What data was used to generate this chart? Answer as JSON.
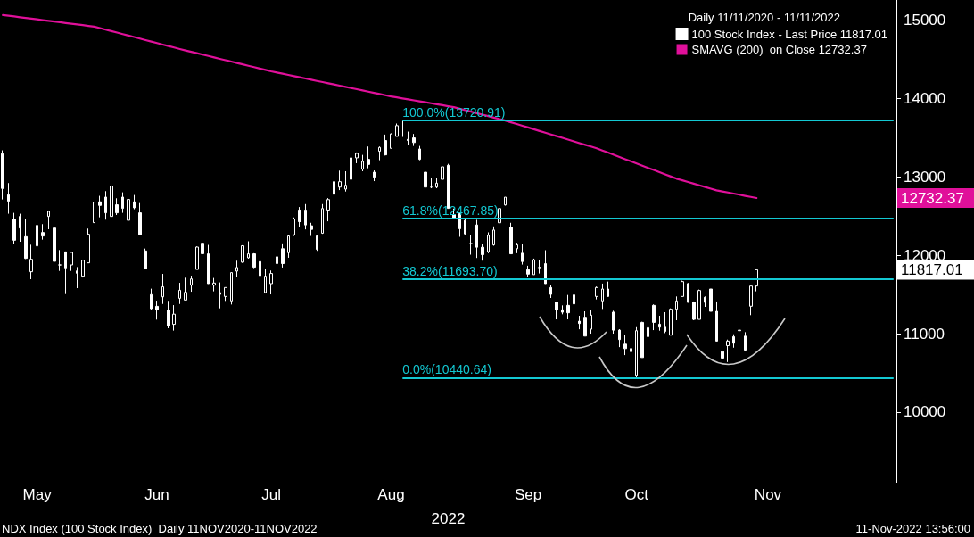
{
  "chart_data": {
    "type": "candlestick",
    "legend_title": "Daily 11/11/2020 - 11/11/2022",
    "xlabel": "2022",
    "categories": [
      null,
      null,
      null,
      null,
      null,
      null,
      "May",
      null,
      null,
      null,
      null,
      null,
      null,
      null,
      null,
      null,
      null,
      null,
      null,
      null,
      null,
      null,
      null,
      null,
      null,
      null,
      null,
      "Jun",
      null,
      null,
      null,
      null,
      null,
      null,
      null,
      null,
      null,
      null,
      null,
      null,
      null,
      null,
      null,
      null,
      null,
      null,
      null,
      "Jul",
      null,
      null,
      null,
      null,
      null,
      null,
      null,
      null,
      null,
      null,
      null,
      null,
      null,
      null,
      null,
      null,
      null,
      null,
      null,
      null,
      "Aug",
      null,
      null,
      null,
      null,
      null,
      null,
      null,
      null,
      null,
      null,
      null,
      null,
      null,
      null,
      null,
      null,
      null,
      null,
      null,
      null,
      null,
      null,
      null,
      "Sep",
      null,
      null,
      null,
      null,
      null,
      null,
      null,
      null,
      null,
      null,
      null,
      null,
      null,
      null,
      null,
      null,
      null,
      null,
      "Oct",
      null,
      null,
      null,
      null,
      null,
      null,
      null,
      null,
      null,
      null,
      null,
      null,
      null,
      null,
      null,
      null,
      null,
      null,
      null,
      null,
      null,
      null,
      "Nov",
      null,
      null,
      null,
      null,
      null,
      null,
      null,
      null,
      null,
      null,
      null,
      null,
      null,
      null,
      null,
      null,
      null,
      null,
      null,
      null,
      null,
      null
    ],
    "series": [
      {
        "name": "100 Stock Index - Last Price 11817.01",
        "color": "#ffffff",
        "ohlc": [
          [
            13300,
            13341,
            12714,
            12855
          ],
          [
            12775,
            12923,
            12532,
            12691
          ],
          [
            12463,
            12543,
            12144,
            12193
          ],
          [
            12497,
            12532,
            12174,
            12349
          ],
          [
            12239,
            12467,
            11954,
            11962
          ],
          [
            11791,
            12136,
            11696,
            11950
          ],
          [
            12121,
            12429,
            12076,
            12383
          ],
          [
            12292,
            12399,
            12201,
            12247
          ],
          [
            12497,
            12570,
            12334,
            12562
          ],
          [
            12349,
            12383,
            11893,
            11924
          ],
          [
            11878,
            12068,
            11802,
            11878
          ],
          [
            12045,
            12045,
            11506,
            11840
          ],
          [
            11878,
            12045,
            11802,
            12038
          ],
          [
            11802,
            11851,
            11582,
            11772
          ],
          [
            11734,
            11945,
            11718,
            11939
          ],
          [
            11905,
            12342,
            11905,
            12269
          ],
          [
            12418,
            12684,
            12418,
            12680
          ],
          [
            12684,
            12760,
            12486,
            12638
          ],
          [
            12744,
            12820,
            12456,
            12543
          ],
          [
            12497,
            12896,
            12448,
            12885
          ],
          [
            12646,
            12729,
            12516,
            12543
          ],
          [
            12744,
            12805,
            12543,
            12600
          ],
          [
            12448,
            12741,
            12410,
            12714
          ],
          [
            12684,
            12771,
            12589,
            12608
          ],
          [
            12543,
            12668,
            12266,
            12266
          ],
          [
            12057,
            12087,
            11832,
            11832
          ],
          [
            11500,
            11575,
            11300,
            11320
          ],
          [
            11350,
            11422,
            11180,
            11308
          ],
          [
            11471,
            11764,
            11380,
            11600
          ],
          [
            11300,
            11420,
            11070,
            11100
          ],
          [
            11120,
            11365,
            11040,
            11250
          ],
          [
            11452,
            11650,
            11380,
            11555
          ],
          [
            11430,
            11715,
            11430,
            11528
          ],
          [
            11620,
            11741,
            11536,
            11700
          ],
          [
            11821,
            12114,
            11821,
            12106
          ],
          [
            12155,
            12182,
            11973,
            12022
          ],
          [
            12020,
            12134,
            11639,
            11639
          ],
          [
            11620,
            11712,
            11541,
            11647
          ],
          [
            11525,
            11655,
            11324,
            11502
          ],
          [
            11476,
            11590,
            11419,
            11590
          ],
          [
            11419,
            11780,
            11373,
            11780
          ],
          [
            11799,
            11932,
            11723,
            11845
          ],
          [
            11914,
            12130,
            11906,
            12123
          ],
          [
            11970,
            12180,
            11959,
            12020
          ],
          [
            12020,
            12028,
            11837,
            11849
          ],
          [
            11921,
            11990,
            11693,
            11742
          ],
          [
            11525,
            11826,
            11514,
            11735
          ],
          [
            11639,
            11807,
            11502,
            11769
          ],
          [
            11895,
            11990,
            11868,
            11982
          ],
          [
            12085,
            12153,
            11845,
            11895
          ],
          [
            12035,
            12256,
            11970,
            12248
          ],
          [
            12263,
            12484,
            12248,
            12465
          ],
          [
            12579,
            12617,
            12359,
            12430
          ],
          [
            12579,
            12655,
            12332,
            12389
          ],
          [
            12378,
            12416,
            12248,
            12332
          ],
          [
            12248,
            12256,
            12058,
            12077
          ],
          [
            12283,
            12655,
            12275,
            12598
          ],
          [
            12579,
            12731,
            12435,
            12712
          ],
          [
            12781,
            12986,
            12731,
            12941
          ],
          [
            12872,
            13082,
            12834,
            12941
          ],
          [
            12846,
            13074,
            12815,
            12895
          ],
          [
            12971,
            13291,
            12971,
            13245
          ],
          [
            13245,
            13314,
            13177,
            13302
          ],
          [
            13101,
            13283,
            13074,
            13200
          ],
          [
            13226,
            13390,
            13112,
            13161
          ],
          [
            13062,
            13085,
            12948,
            12998
          ],
          [
            13329,
            13390,
            13215,
            13378
          ],
          [
            13466,
            13542,
            13276,
            13283
          ],
          [
            13367,
            13557,
            13367,
            13550
          ],
          [
            13519,
            13683,
            13519,
            13656
          ],
          [
            13626,
            13720.91,
            13512,
            13626
          ],
          [
            13481,
            13580,
            13405,
            13466
          ],
          [
            13500,
            13550,
            13397,
            13440
          ],
          [
            13359,
            13397,
            13215,
            13226
          ],
          [
            13062,
            13074,
            12865,
            12872
          ],
          [
            12872,
            12986,
            12857,
            12872
          ],
          [
            12872,
            12986,
            12857,
            12922
          ],
          [
            12971,
            13139,
            12971,
            13131
          ],
          [
            13150,
            13169,
            12598,
            12600
          ],
          [
            12522,
            12598,
            12465,
            12477
          ],
          [
            12534,
            12541,
            12237,
            12340
          ],
          [
            12446,
            12465,
            12264,
            12275
          ],
          [
            12150,
            12264,
            12009,
            12150
          ],
          [
            12389,
            12454,
            11967,
            12104
          ],
          [
            12104,
            12150,
            11933,
            12009
          ],
          [
            12047,
            12294,
            12028,
            12256
          ],
          [
            12134,
            12370,
            12123,
            12324
          ],
          [
            12416,
            12598,
            12408,
            12598
          ],
          [
            12644,
            12743,
            12636,
            12743
          ],
          [
            12362,
            12416,
            12020,
            12020
          ],
          [
            12085,
            12161,
            12028,
            12134
          ],
          [
            12028,
            12150,
            11883,
            11921
          ],
          [
            11818,
            11868,
            11723,
            11761
          ],
          [
            11754,
            11959,
            11754,
            11944
          ],
          [
            11845,
            11944,
            11769,
            11845
          ],
          [
            11895,
            12066,
            11639,
            11639
          ],
          [
            11590,
            11617,
            11457,
            11502
          ],
          [
            11400,
            11400,
            11183,
            11305
          ],
          [
            11305,
            11362,
            11248,
            11274
          ],
          [
            11362,
            11495,
            11183,
            11267
          ],
          [
            11495,
            11552,
            11229,
            11381
          ],
          [
            11160,
            11229,
            11057,
            11130
          ],
          [
            11210,
            11286,
            10970,
            10970
          ],
          [
            11058,
            11305,
            11001,
            11237
          ],
          [
            11476,
            11602,
            11438,
            11590
          ],
          [
            11419,
            11640,
            11316,
            11571
          ],
          [
            11571,
            11666,
            11476,
            11476
          ],
          [
            11275,
            11294,
            11001,
            11046
          ],
          [
            11046,
            11058,
            10829,
            10925
          ],
          [
            10867,
            10982,
            10727,
            10810
          ],
          [
            10810,
            10906,
            10753,
            10772
          ],
          [
            10468,
            11084,
            10440.64,
            11039
          ],
          [
            11145,
            11153,
            10696,
            10696
          ],
          [
            10963,
            11096,
            10963,
            11077
          ],
          [
            11362,
            11374,
            11046,
            11145
          ],
          [
            11122,
            11229,
            11039,
            11084
          ],
          [
            11084,
            11275,
            11008,
            11031
          ],
          [
            10982,
            11324,
            10982,
            11313
          ],
          [
            11313,
            11476,
            11172,
            11419
          ],
          [
            11476,
            11678,
            11476,
            11666
          ],
          [
            11640,
            11647,
            11400,
            11400
          ],
          [
            11400,
            11412,
            11172,
            11183
          ],
          [
            11183,
            11564,
            11183,
            11552
          ],
          [
            11465,
            11476,
            11343,
            11400
          ],
          [
            11571,
            11571,
            11286,
            11286
          ],
          [
            11286,
            11412,
            10906,
            10906
          ],
          [
            10772,
            10848,
            10689,
            10689
          ],
          [
            10848,
            10925,
            10639,
            10906
          ],
          [
            10963,
            10993,
            10822,
            10879
          ],
          [
            11039,
            11191,
            10906,
            11046
          ],
          [
            10970,
            11020,
            10791,
            10791
          ],
          [
            11351,
            11609,
            11237,
            11609
          ],
          [
            11609,
            11830,
            11541,
            11817.01
          ],
          null,
          null,
          null,
          null,
          null,
          null,
          null,
          null,
          null,
          null,
          null,
          null,
          null,
          null,
          null,
          null,
          null,
          null,
          null,
          null,
          null,
          null,
          null,
          null
        ]
      },
      {
        "type": "line",
        "name": "SMAVG (200)  on Close 12732.37",
        "color": "#e0109a",
        "values": [
          15068,
          15059,
          15050,
          15040,
          15031,
          15022,
          15013,
          15003,
          14994,
          14985,
          14976,
          14966,
          14957,
          14948,
          14939,
          14929,
          14920,
          14901,
          14882,
          14863,
          14844,
          14825,
          14806,
          14787,
          14767,
          14748,
          14729,
          14710,
          14691,
          14672,
          14653,
          14634,
          14616,
          14598,
          14581,
          14563,
          14545,
          14527,
          14509,
          14492,
          14474,
          14456,
          14438,
          14420,
          14403,
          14385,
          14367,
          14349,
          14334,
          14319,
          14303,
          14288,
          14273,
          14258,
          14243,
          14227,
          14212,
          14197,
          14182,
          14167,
          14151,
          14136,
          14121,
          14106,
          14090,
          14075,
          14060,
          14044,
          14029,
          14017,
          14004,
          13992,
          13979,
          13967,
          13954,
          13942,
          13929,
          13917,
          13904,
          13892,
          13873,
          13854,
          13835,
          13816,
          13797,
          13778,
          13759,
          13740,
          13721,
          13699,
          13677,
          13655,
          13633,
          13610,
          13588,
          13566,
          13544,
          13522,
          13500,
          13478,
          13456,
          13433,
          13411,
          13389,
          13367,
          13339,
          13312,
          13284,
          13256,
          13228,
          13201,
          13173,
          13145,
          13117,
          13090,
          13062,
          13034,
          13007,
          12979,
          12958,
          12937,
          12916,
          12894,
          12873,
          12852,
          12831,
          12817,
          12803,
          12789,
          12775,
          12760,
          12746,
          12732.37,
          null,
          null,
          null,
          null,
          null,
          null,
          null,
          null,
          null,
          null,
          null,
          null,
          null,
          null,
          null,
          null,
          null,
          null,
          null,
          null,
          null,
          null,
          null,
          null
        ]
      }
    ],
    "ylim": [
      9100,
      15260
    ],
    "yticks": [
      10000,
      11000,
      12000,
      13000,
      14000,
      15000
    ],
    "ref_lines": [
      {
        "axis": "y",
        "value": 13720.91,
        "label": "100.0%(13720.91)",
        "color": "#13c8d2"
      },
      {
        "axis": "y",
        "value": 12467.85,
        "label": "61.8%(12467.85)",
        "color": "#13c8d2"
      },
      {
        "axis": "y",
        "value": 11693.7,
        "label": "38.2%(11693.70)",
        "color": "#13c8d2"
      },
      {
        "axis": "y",
        "value": 10440.64,
        "label": "0.0%(10440.64)",
        "color": "#13c8d2"
      }
    ],
    "annotations": [
      "NDX Index (100 Stock Index)  Daily 11NOV2020-11NOV2022",
      "11-Nov-2022 13:56:00",
      "11817.01",
      "12732.37"
    ],
    "legend": "top right",
    "grid": false,
    "marker": "none",
    "line_style": "solid"
  }
}
